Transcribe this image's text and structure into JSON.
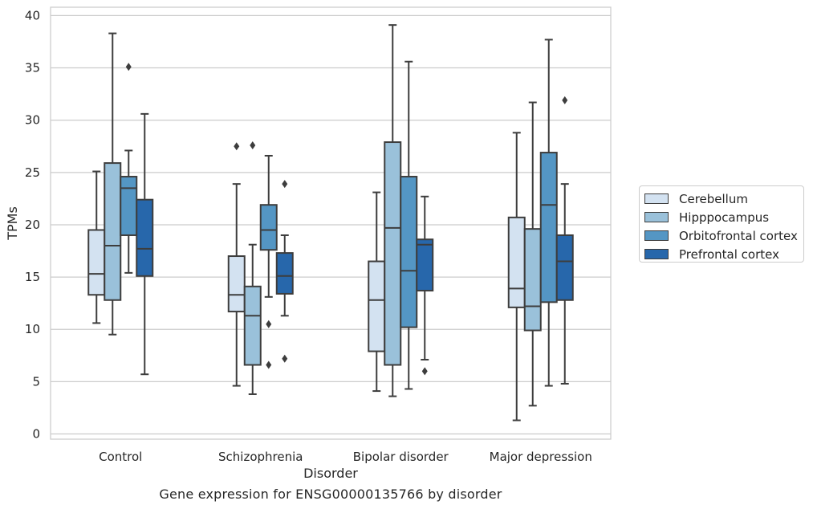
{
  "chart_data": {
    "type": "box",
    "title": "",
    "caption": "Gene expression for ENSG00000135766 by disorder",
    "xlabel": "Disorder",
    "ylabel": "TPMs",
    "ylim": [
      -0.5,
      40.8
    ],
    "yticks": [
      0,
      5,
      10,
      15,
      20,
      25,
      30,
      35,
      40
    ],
    "grid": "horizontal",
    "legend_position": "right",
    "categories": [
      "Control",
      "Schizophrenia",
      "Bipolar disorder",
      "Major depression"
    ],
    "series": [
      {
        "name": "Cerebellum",
        "color": "#d3e2f1",
        "boxes": [
          {
            "whislo": 10.6,
            "q1": 13.3,
            "med": 15.3,
            "q3": 19.5,
            "whishi": 25.1,
            "fliers": []
          },
          {
            "whislo": 4.6,
            "q1": 11.7,
            "med": 13.3,
            "q3": 17.0,
            "whishi": 23.9,
            "fliers": [
              27.5
            ]
          },
          {
            "whislo": 4.1,
            "q1": 7.9,
            "med": 12.8,
            "q3": 16.5,
            "whishi": 23.1,
            "fliers": []
          },
          {
            "whislo": 1.3,
            "q1": 12.1,
            "med": 13.9,
            "q3": 20.7,
            "whishi": 28.8,
            "fliers": []
          }
        ]
      },
      {
        "name": "Hipppocampus",
        "color": "#9ac1da",
        "boxes": [
          {
            "whislo": 9.5,
            "q1": 12.8,
            "med": 18.0,
            "q3": 25.9,
            "whishi": 38.3,
            "fliers": []
          },
          {
            "whislo": 3.8,
            "q1": 6.6,
            "med": 11.3,
            "q3": 14.1,
            "whishi": 18.1,
            "fliers": [
              27.6
            ]
          },
          {
            "whislo": 3.6,
            "q1": 6.6,
            "med": 19.7,
            "q3": 27.9,
            "whishi": 39.1,
            "fliers": []
          },
          {
            "whislo": 2.7,
            "q1": 9.9,
            "med": 12.2,
            "q3": 19.6,
            "whishi": 31.7,
            "fliers": []
          }
        ]
      },
      {
        "name": "Orbitofrontal cortex",
        "color": "#5496c4",
        "boxes": [
          {
            "whislo": 15.4,
            "q1": 19.0,
            "med": 23.5,
            "q3": 24.6,
            "whishi": 27.1,
            "fliers": [
              35.1
            ]
          },
          {
            "whislo": 13.1,
            "q1": 17.6,
            "med": 19.5,
            "q3": 21.9,
            "whishi": 26.6,
            "fliers": [
              10.5,
              6.6
            ]
          },
          {
            "whislo": 4.3,
            "q1": 10.2,
            "med": 15.6,
            "q3": 24.6,
            "whishi": 35.6,
            "fliers": []
          },
          {
            "whislo": 4.6,
            "q1": 12.6,
            "med": 21.9,
            "q3": 26.9,
            "whishi": 37.7,
            "fliers": []
          }
        ]
      },
      {
        "name": "Prefrontal cortex",
        "color": "#2767ab",
        "boxes": [
          {
            "whislo": 5.7,
            "q1": 15.1,
            "med": 17.7,
            "q3": 22.4,
            "whishi": 30.6,
            "fliers": []
          },
          {
            "whislo": 11.3,
            "q1": 13.4,
            "med": 15.1,
            "q3": 17.3,
            "whishi": 19.0,
            "fliers": [
              23.9,
              7.2
            ]
          },
          {
            "whislo": 7.1,
            "q1": 13.7,
            "med": 18.1,
            "q3": 18.6,
            "whishi": 22.7,
            "fliers": [
              6.0
            ]
          },
          {
            "whislo": 4.8,
            "q1": 12.8,
            "med": 16.5,
            "q3": 19.0,
            "whishi": 23.9,
            "fliers": [
              31.9
            ]
          }
        ]
      }
    ]
  }
}
